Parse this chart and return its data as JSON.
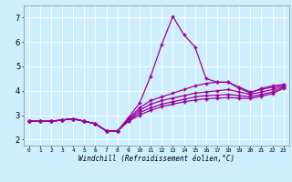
{
  "xlabel": "Windchill (Refroidissement éolien,°C)",
  "bg_color": "#cceeff",
  "grid_color": "#ffffff",
  "line_color": "#990099",
  "marker": "+",
  "x_ticks": [
    0,
    1,
    2,
    3,
    4,
    5,
    6,
    7,
    8,
    9,
    10,
    11,
    12,
    13,
    14,
    15,
    16,
    17,
    18,
    19,
    20,
    21,
    22,
    23
  ],
  "y_ticks": [
    2,
    3,
    4,
    5,
    6,
    7
  ],
  "xlim": [
    -0.5,
    23.5
  ],
  "ylim": [
    1.75,
    7.5
  ],
  "series": [
    [
      2.75,
      2.75,
      2.75,
      2.8,
      2.85,
      2.75,
      2.65,
      2.35,
      2.35,
      2.9,
      3.5,
      4.6,
      5.9,
      7.05,
      6.3,
      5.8,
      4.5,
      4.35,
      4.35,
      4.1,
      3.9,
      4.1,
      4.2,
      4.25
    ],
    [
      2.75,
      2.75,
      2.75,
      2.8,
      2.85,
      2.75,
      2.65,
      2.35,
      2.35,
      2.85,
      3.3,
      3.6,
      3.75,
      3.9,
      4.05,
      4.2,
      4.3,
      4.35,
      4.35,
      4.15,
      3.95,
      4.05,
      4.15,
      4.25
    ],
    [
      2.75,
      2.75,
      2.75,
      2.8,
      2.85,
      2.75,
      2.65,
      2.35,
      2.35,
      2.8,
      3.2,
      3.45,
      3.6,
      3.7,
      3.8,
      3.9,
      3.95,
      4.0,
      4.05,
      3.95,
      3.85,
      3.95,
      4.05,
      4.2
    ],
    [
      2.75,
      2.75,
      2.75,
      2.8,
      2.85,
      2.75,
      2.65,
      2.35,
      2.35,
      2.77,
      3.1,
      3.3,
      3.45,
      3.55,
      3.65,
      3.75,
      3.8,
      3.82,
      3.85,
      3.8,
      3.75,
      3.85,
      3.95,
      4.15
    ],
    [
      2.75,
      2.75,
      2.75,
      2.8,
      2.85,
      2.75,
      2.65,
      2.35,
      2.35,
      2.75,
      3.0,
      3.2,
      3.35,
      3.45,
      3.55,
      3.62,
      3.67,
      3.7,
      3.72,
      3.7,
      3.68,
      3.78,
      3.88,
      4.1
    ]
  ]
}
